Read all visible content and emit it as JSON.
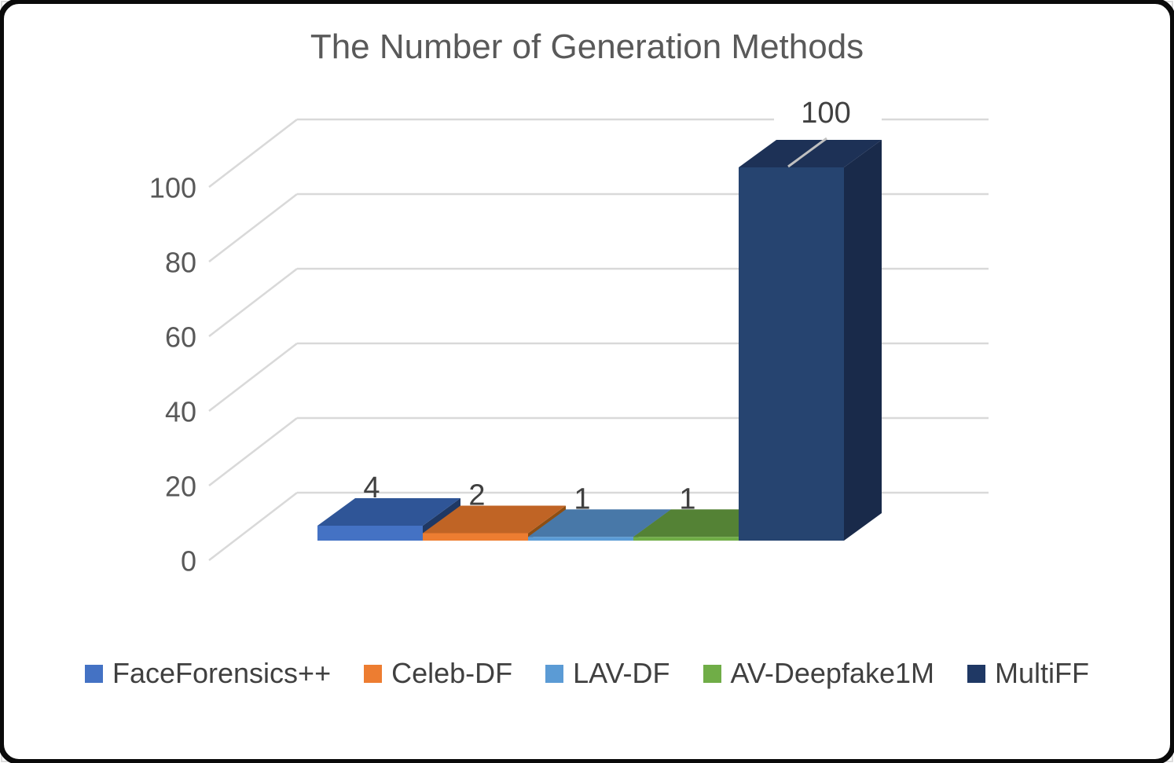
{
  "chart_data": {
    "type": "bar",
    "style": "3d-column",
    "title": "The Number of Generation Methods",
    "categories": [
      "FaceForensics++",
      "Celeb-DF",
      "LAV-DF",
      "AV-Deepfake1M",
      "MultiFF"
    ],
    "values": [
      4,
      2,
      1,
      1,
      100
    ],
    "data_labels": [
      "4",
      "2",
      "1",
      "1",
      "100"
    ],
    "yticks": [
      0,
      20,
      40,
      60,
      80,
      100
    ],
    "ylim": [
      0,
      110
    ],
    "grid": true,
    "legend_position": "bottom",
    "series": [
      {
        "name": "FaceForensics++",
        "front": "#4472C4",
        "top": "#2F5597",
        "side": "#1F3864"
      },
      {
        "name": "Celeb-DF",
        "front": "#ED7D31",
        "top": "#C06425",
        "side": "#8E4E12"
      },
      {
        "name": "LAV-DF",
        "front": "#5B9BD5",
        "top": "#4878A8",
        "side": "#31516E"
      },
      {
        "name": "AV-Deepfake1M",
        "front": "#70AD47",
        "top": "#548235",
        "side": "#3E6127"
      },
      {
        "name": "MultiFF",
        "front": "#264470",
        "top": "#1D3156",
        "side": "#192A4A"
      }
    ]
  },
  "axis": {
    "tick_color": "#595959"
  },
  "legend": {
    "items": [
      {
        "label": "FaceForensics++",
        "color": "#4472C4"
      },
      {
        "label": "Celeb-DF",
        "color": "#ED7D31"
      },
      {
        "label": "LAV-DF",
        "color": "#5B9BD5"
      },
      {
        "label": "AV-Deepfake1M",
        "color": "#70AD47"
      },
      {
        "label": "MultiFF",
        "color": "#1F3864"
      }
    ]
  },
  "colors": {
    "title": "#595959",
    "gridline": "#D9D9D9",
    "data_label": "#404040",
    "legend_text": "#404040",
    "background": "#FFFFFF",
    "outer_border": "#0A0A0A",
    "inner_border": "#DCDCDC",
    "top_face_tick": "#C0C0C0"
  }
}
